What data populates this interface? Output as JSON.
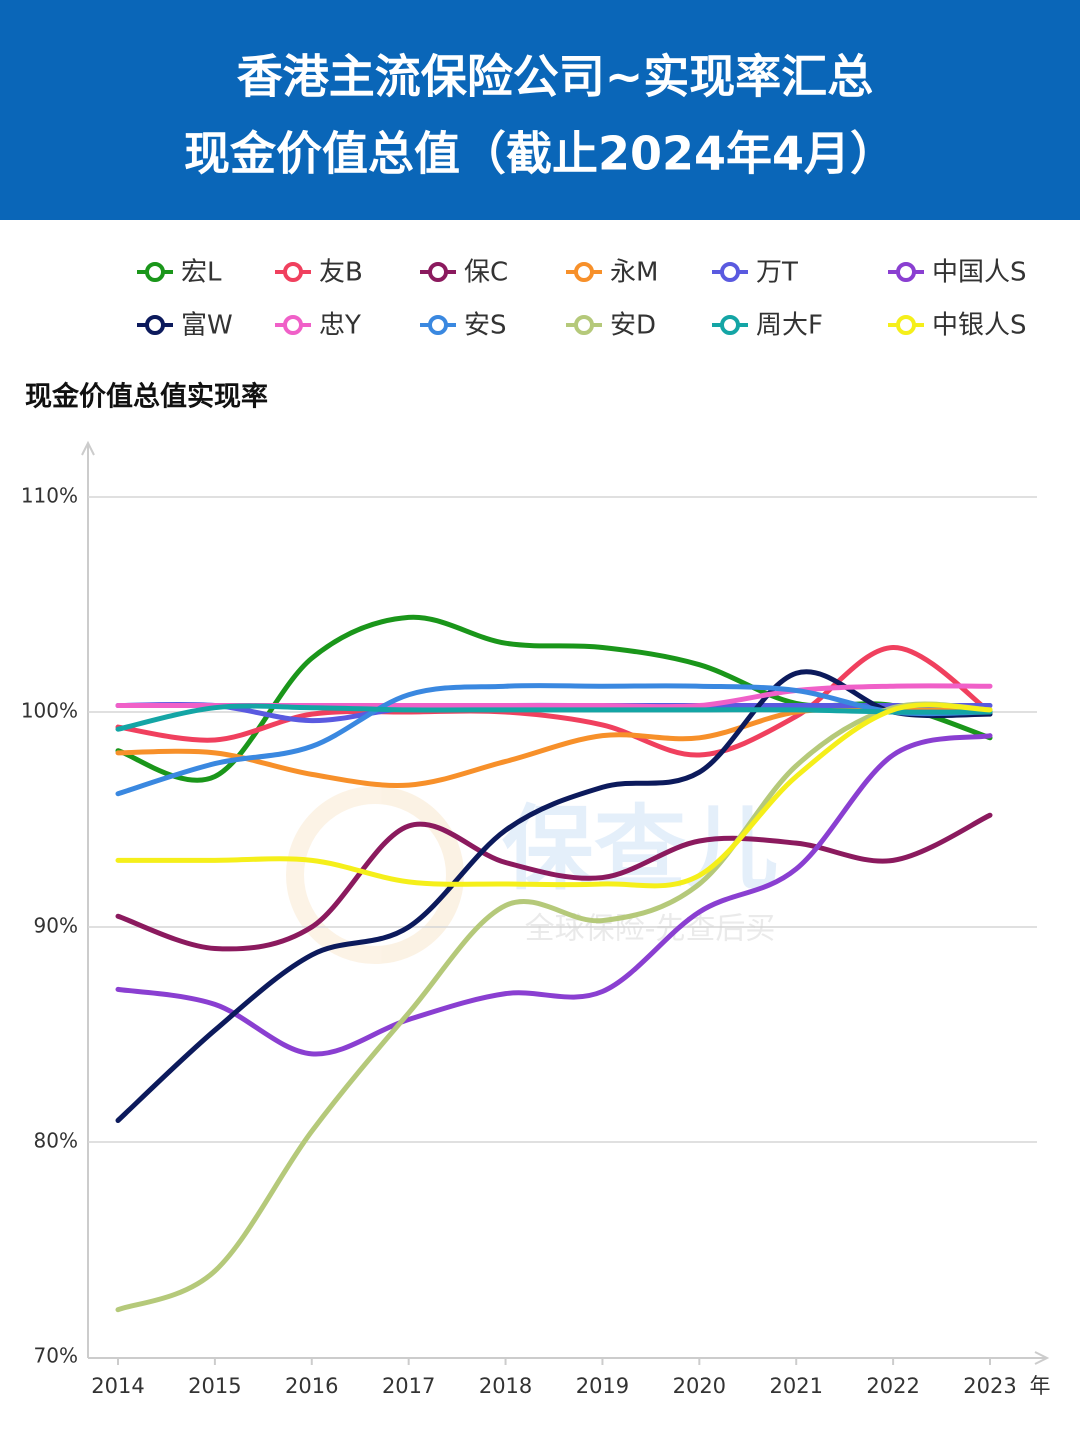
{
  "chart_data": {
    "type": "line",
    "title": "香港主流保险公司~实现率汇总",
    "subtitle": "现金价值总值（截止2024年4月）",
    "y_label": "现金价值总值实现率",
    "x_label": "年",
    "watermark": "保查儿",
    "watermark_slogan": "全球保险-先查后买",
    "categories": [
      "2014",
      "2015",
      "2016",
      "2017",
      "2018",
      "2019",
      "2020",
      "2021",
      "2022",
      "2023"
    ],
    "ylim": [
      70,
      110
    ],
    "yticks": [
      {
        "value": 70,
        "label": "70%"
      },
      {
        "value": 80,
        "label": "80%"
      },
      {
        "value": 90,
        "label": "90%"
      },
      {
        "value": 100,
        "label": "100%"
      },
      {
        "value": 110,
        "label": "110%"
      }
    ],
    "grid": true,
    "smooth": true,
    "series": [
      {
        "name": "宏L",
        "color": "#1a961a",
        "values": [
          98.2,
          97.0,
          102.5,
          104.4,
          103.2,
          103.0,
          102.2,
          100.4,
          100.3,
          98.8
        ]
      },
      {
        "name": "友B",
        "color": "#f0405e",
        "values": [
          99.3,
          98.7,
          99.9,
          100.0,
          100.0,
          99.4,
          98.0,
          99.8,
          103.0,
          100.0
        ]
      },
      {
        "name": "保C",
        "color": "#8b1a5e",
        "values": [
          90.5,
          89.0,
          90.0,
          94.7,
          93.0,
          92.3,
          94.0,
          93.9,
          93.1,
          95.2
        ]
      },
      {
        "name": "永M",
        "color": "#f7902a",
        "values": [
          98.1,
          98.1,
          97.1,
          96.6,
          97.7,
          98.9,
          98.8,
          100.0,
          100.1,
          100.1
        ]
      },
      {
        "name": "万T",
        "color": "#5a5ae0",
        "values": [
          100.3,
          100.3,
          99.6,
          100.2,
          100.3,
          100.3,
          100.3,
          100.3,
          100.3,
          100.3
        ]
      },
      {
        "name": "中国人S",
        "color": "#8a3fd1",
        "values": [
          87.1,
          86.4,
          84.1,
          85.7,
          86.9,
          87.0,
          90.7,
          92.7,
          98.0,
          98.9
        ]
      },
      {
        "name": "富W",
        "color": "#0c1a5c",
        "values": [
          81.0,
          85.2,
          88.7,
          90.0,
          94.5,
          96.5,
          97.2,
          101.8,
          100.0,
          99.9
        ]
      },
      {
        "name": "忠Y",
        "color": "#f060c8",
        "values": [
          100.3,
          100.3,
          100.3,
          100.3,
          100.3,
          100.3,
          100.3,
          101.0,
          101.2,
          101.2
        ]
      },
      {
        "name": "安S",
        "color": "#3a88e0",
        "values": [
          96.2,
          97.6,
          98.4,
          100.8,
          101.2,
          101.2,
          101.2,
          101.0,
          100.0,
          100.0
        ]
      },
      {
        "name": "安D",
        "color": "#b5c97a",
        "values": [
          72.2,
          74.0,
          80.5,
          86.0,
          91.0,
          90.3,
          92.0,
          97.5,
          100.2,
          100.1
        ]
      },
      {
        "name": "周大F",
        "color": "#14a5a5",
        "values": [
          99.2,
          100.2,
          100.2,
          100.1,
          100.1,
          100.1,
          100.1,
          100.1,
          100.0,
          100.0
        ]
      },
      {
        "name": "中银人S",
        "color": "#f5ef1a",
        "values": [
          93.1,
          93.1,
          93.1,
          92.1,
          92.0,
          92.0,
          92.4,
          97.0,
          100.1,
          100.1
        ]
      }
    ]
  }
}
